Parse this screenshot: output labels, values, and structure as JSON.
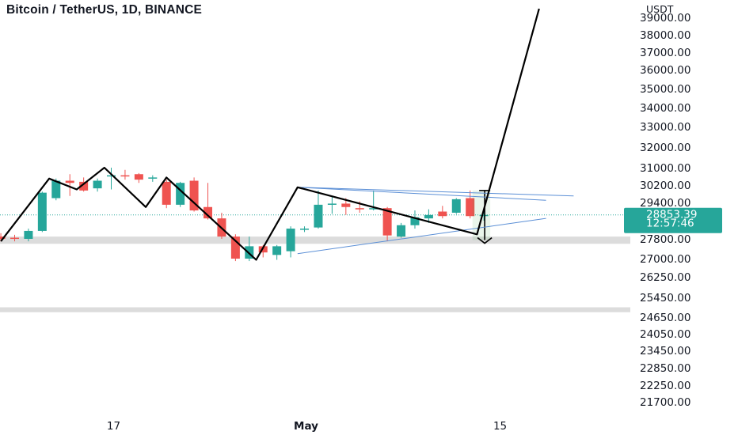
{
  "header": {
    "title": "Bitcoin / TetherUS, 1D, BINANCE"
  },
  "chart_data": {
    "type": "candlestick",
    "symbol": "Bitcoin / TetherUS",
    "interval": "1D",
    "exchange": "BINANCE",
    "y_unit": "USDT",
    "y_ticks": [
      39000,
      38000,
      37000,
      36000,
      35000,
      34000,
      33000,
      32000,
      31000,
      30200,
      29400,
      27800,
      27000,
      26250,
      25450,
      24650,
      24050,
      23450,
      22850,
      22250,
      21700
    ],
    "y_tick_labels": [
      "39000.00",
      "38000.00",
      "37000.00",
      "36000.00",
      "35000.00",
      "34000.00",
      "33000.00",
      "32000.00",
      "31000.00",
      "30200.00",
      "29400.00",
      "27800.00",
      "27000.00",
      "26250.00",
      "25450.00",
      "24650.00",
      "24050.00",
      "23450.00",
      "22850.00",
      "22250.00",
      "21700.00"
    ],
    "x_ticks": [
      {
        "label": "17",
        "bold": false,
        "day": 7
      },
      {
        "label": "May",
        "bold": true,
        "day": 21
      },
      {
        "label": "15",
        "bold": false,
        "day": 35
      }
    ],
    "last_price": {
      "price": "28853.39",
      "countdown": "12:57:46",
      "value": 28853.39
    },
    "colors": {
      "up": "#26a69a",
      "down": "#ef5350",
      "pattern": "#000000",
      "triangle": "#5b8fd6",
      "zone": "#dcdcdc",
      "price_line": "#26a69a"
    },
    "candles": [
      {
        "day": -1,
        "open": 27900,
        "high": 28050,
        "low": 27700,
        "close": 27800
      },
      {
        "day": 0,
        "open": 27850,
        "high": 27980,
        "low": 27700,
        "close": 27800
      },
      {
        "day": 1,
        "open": 27800,
        "high": 28250,
        "low": 27700,
        "close": 28150
      },
      {
        "day": 2,
        "open": 28150,
        "high": 29900,
        "low": 28100,
        "close": 29850
      },
      {
        "day": 3,
        "open": 29600,
        "high": 30500,
        "low": 29500,
        "close": 30400
      },
      {
        "day": 4,
        "open": 30400,
        "high": 30700,
        "low": 29700,
        "close": 30300
      },
      {
        "day": 5,
        "open": 30350,
        "high": 30550,
        "low": 29900,
        "close": 29950
      },
      {
        "day": 6,
        "open": 30050,
        "high": 30500,
        "low": 29900,
        "close": 30400
      },
      {
        "day": 7,
        "open": 30600,
        "high": 31000,
        "low": 30000,
        "close": 30650
      },
      {
        "day": 8,
        "open": 30650,
        "high": 30900,
        "low": 30450,
        "close": 30600
      },
      {
        "day": 9,
        "open": 30700,
        "high": 30750,
        "low": 30300,
        "close": 30450
      },
      {
        "day": 10,
        "open": 30500,
        "high": 30650,
        "low": 30350,
        "close": 30550
      },
      {
        "day": 11,
        "open": 30350,
        "high": 30450,
        "low": 29150,
        "close": 29300
      },
      {
        "day": 12,
        "open": 29300,
        "high": 30350,
        "low": 29200,
        "close": 30300
      },
      {
        "day": 13,
        "open": 30400,
        "high": 30550,
        "low": 29000,
        "close": 29050
      },
      {
        "day": 14,
        "open": 29200,
        "high": 30300,
        "low": 28650,
        "close": 28700
      },
      {
        "day": 15,
        "open": 28700,
        "high": 28950,
        "low": 27800,
        "close": 27900
      },
      {
        "day": 16,
        "open": 27900,
        "high": 28000,
        "low": 26900,
        "close": 27000
      },
      {
        "day": 17,
        "open": 27000,
        "high": 27900,
        "low": 26900,
        "close": 27500
      },
      {
        "day": 18,
        "open": 27500,
        "high": 27550,
        "low": 27050,
        "close": 27250
      },
      {
        "day": 19,
        "open": 27150,
        "high": 27550,
        "low": 26950,
        "close": 27500
      },
      {
        "day": 20,
        "open": 27300,
        "high": 28350,
        "low": 27050,
        "close": 28250
      },
      {
        "day": 21,
        "open": 28200,
        "high": 28350,
        "low": 28100,
        "close": 28250
      },
      {
        "day": 22,
        "open": 28300,
        "high": 29950,
        "low": 28250,
        "close": 29300
      },
      {
        "day": 23,
        "open": 29300,
        "high": 29700,
        "low": 28900,
        "close": 29350
      },
      {
        "day": 24,
        "open": 29350,
        "high": 29600,
        "low": 28850,
        "close": 29200
      },
      {
        "day": 25,
        "open": 29150,
        "high": 29450,
        "low": 28950,
        "close": 29100
      },
      {
        "day": 26,
        "open": 29100,
        "high": 29950,
        "low": 29050,
        "close": 29150
      },
      {
        "day": 27,
        "open": 29150,
        "high": 29200,
        "low": 27700,
        "close": 27950
      },
      {
        "day": 28,
        "open": 27900,
        "high": 28500,
        "low": 27850,
        "close": 28400
      },
      {
        "day": 29,
        "open": 28400,
        "high": 29050,
        "low": 28250,
        "close": 28750
      },
      {
        "day": 30,
        "open": 28700,
        "high": 29100,
        "low": 28500,
        "close": 28850
      },
      {
        "day": 31,
        "open": 29000,
        "high": 29250,
        "low": 28700,
        "close": 28800
      },
      {
        "day": 32,
        "open": 28950,
        "high": 29600,
        "low": 28900,
        "close": 29550
      },
      {
        "day": 33,
        "open": 29600,
        "high": 29950,
        "low": 28700,
        "close": 28800
      },
      {
        "day": 34,
        "open": 28800,
        "high": 29100,
        "low": 28600,
        "close": 28853.39
      }
    ],
    "annotations": {
      "zigzag": [
        {
          "day": -1,
          "price": 27700
        },
        {
          "day": 2.5,
          "price": 30500
        },
        {
          "day": 4.5,
          "price": 30000
        },
        {
          "day": 6.5,
          "price": 31000
        },
        {
          "day": 9.5,
          "price": 29200
        },
        {
          "day": 11,
          "price": 30550
        },
        {
          "day": 17.5,
          "price": 26950
        },
        {
          "day": 20.5,
          "price": 30100
        },
        {
          "day": 33.5,
          "price": 28000
        },
        {
          "day": 38,
          "price": 39500
        }
      ],
      "triangle_lines": [
        {
          "from": {
            "day": 20.5,
            "price": 30100
          },
          "to": {
            "day": 40.5,
            "price": 29700
          }
        },
        {
          "from": {
            "day": 20.5,
            "price": 30100
          },
          "to": {
            "day": 38.5,
            "price": 29500
          }
        },
        {
          "from": {
            "day": 20.5,
            "price": 27200
          },
          "to": {
            "day": 38.5,
            "price": 28700
          }
        }
      ],
      "measure_box": {
        "day_from": 33,
        "day_to": 34,
        "price_top": 29950,
        "price_bottom": 27750
      },
      "zones": [
        {
          "price_top": 27900,
          "price_bottom": 27600
        },
        {
          "price_top": 25050,
          "price_bottom": 24850
        }
      ]
    }
  }
}
